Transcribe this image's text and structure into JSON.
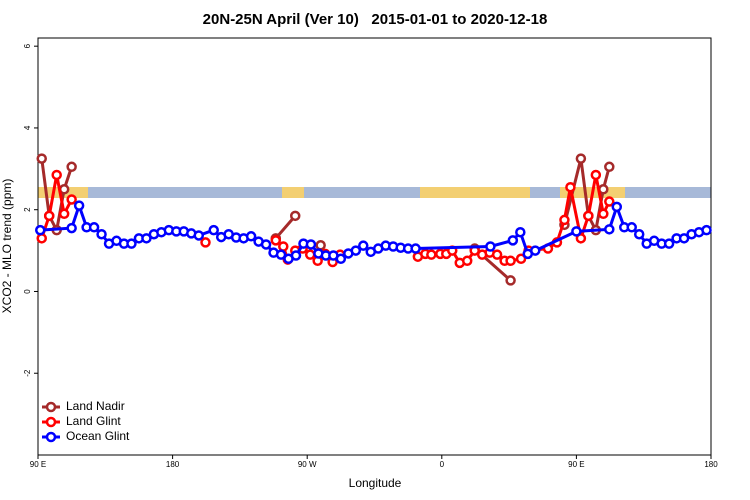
{
  "chart_data": {
    "type": "line",
    "title": "20N-25N April (Ver 10)   2015-01-01 to 2020-12-18",
    "x_label": "Longitude",
    "y_label": "XCO2 - MLO trend (ppm)",
    "xlim": [
      90,
      540
    ],
    "ylim": [
      -4,
      6.2
    ],
    "xticks": [
      {
        "value": 90,
        "label": "90 E"
      },
      180,
      {
        "value": 270,
        "label": "90 W"
      },
      {
        "value": 360,
        "label": "0"
      },
      {
        "value": 450,
        "label": "90 E"
      },
      {
        "value": 540,
        "label": "180"
      }
    ],
    "yticks": [
      -2,
      0,
      2,
      4,
      6
    ],
    "legend": "bottom-left",
    "series": [
      {
        "name": "Land Nadir",
        "color": "#a52a2a",
        "x": [
          92.5,
          97.5,
          102.5,
          107.5,
          112.5,
          null,
          249,
          262,
          null,
          279,
          null,
          382,
          406,
          null,
          442,
          453,
          458,
          463,
          468,
          472
        ],
        "values": [
          3.25,
          1.85,
          1.5,
          2.5,
          3.05,
          null,
          1.3,
          1.85,
          null,
          1.13,
          null,
          1.05,
          0.27,
          null,
          1.63,
          3.25,
          1.85,
          1.5,
          2.5,
          3.05
        ]
      },
      {
        "name": "Land Glint",
        "color": "#ff0000",
        "x": [
          92.5,
          97.5,
          102.5,
          107.5,
          112.5,
          null,
          202,
          null,
          249,
          254,
          257,
          262,
          267,
          272,
          277,
          282,
          287,
          292,
          null,
          344,
          349,
          353,
          359,
          363,
          367,
          372,
          377,
          382,
          387,
          392,
          397,
          402,
          406,
          413,
          418,
          431,
          437,
          442,
          446,
          453,
          458,
          463,
          468,
          472
        ],
        "values": [
          1.3,
          1.85,
          2.85,
          1.9,
          2.25,
          null,
          1.2,
          null,
          1.25,
          1.1,
          0.78,
          1.0,
          1.05,
          0.9,
          0.75,
          0.92,
          0.72,
          0.9,
          null,
          0.85,
          0.92,
          0.9,
          0.92,
          0.92,
          1.0,
          0.7,
          0.75,
          1.0,
          0.9,
          0.95,
          0.9,
          0.75,
          0.75,
          0.8,
          1.0,
          1.05,
          1.2,
          1.75,
          2.55,
          1.3,
          1.85,
          2.85,
          1.9,
          2.2
        ]
      },
      {
        "name": "Ocean Glint",
        "color": "#0000ff",
        "x": [
          91.5,
          112.5,
          117.5,
          122.5,
          127.5,
          132.5,
          137.5,
          142.5,
          147.5,
          152.5,
          157.5,
          162.5,
          167.5,
          172.5,
          177.5,
          182.5,
          187.5,
          192.5,
          197.5,
          207.5,
          212.5,
          217.5,
          222.5,
          227.5,
          232.5,
          237.5,
          242.5,
          247.5,
          252.5,
          257.5,
          262.5,
          267.5,
          272.5,
          277.5,
          282.5,
          287.5,
          292.5,
          297.5,
          302.5,
          307.5,
          312.5,
          317.5,
          322.5,
          327.5,
          332.5,
          337.5,
          342.5,
          392.5,
          407.5,
          412.5,
          417.5,
          422.5,
          450,
          472,
          477,
          482,
          487,
          492,
          497,
          502,
          507,
          512,
          517,
          522,
          527,
          532,
          537
        ],
        "values": [
          1.5,
          1.55,
          2.1,
          1.57,
          1.57,
          1.4,
          1.17,
          1.24,
          1.17,
          1.17,
          1.3,
          1.3,
          1.4,
          1.45,
          1.5,
          1.47,
          1.47,
          1.42,
          1.37,
          1.5,
          1.33,
          1.4,
          1.32,
          1.3,
          1.35,
          1.22,
          1.15,
          0.95,
          0.9,
          0.8,
          0.88,
          1.17,
          1.15,
          0.93,
          0.88,
          0.88,
          0.8,
          0.93,
          1.0,
          1.12,
          0.97,
          1.05,
          1.12,
          1.1,
          1.07,
          1.05,
          1.05,
          1.1,
          1.25,
          1.45,
          0.92,
          1.0,
          1.47,
          1.52,
          2.07,
          1.57,
          1.57,
          1.4,
          1.17,
          1.24,
          1.17,
          1.17,
          1.3,
          1.3,
          1.4,
          1.45,
          1.5
        ]
      }
    ]
  }
}
